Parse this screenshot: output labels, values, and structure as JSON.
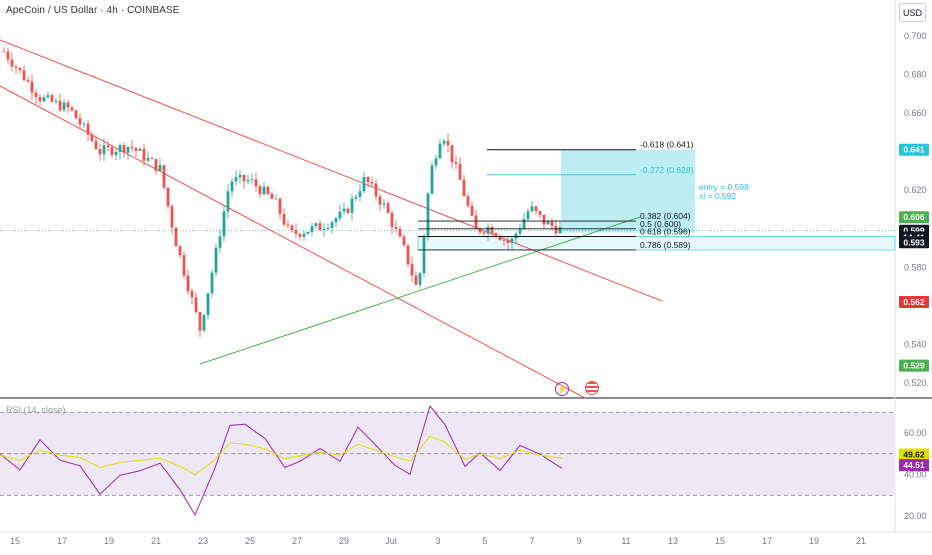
{
  "header": {
    "symbol_title": "ApeCoin / US Dollar · 4h · COINBASE",
    "currency_button": "USD"
  },
  "colors": {
    "up": "#26a69a",
    "down": "#ef5350",
    "channel_line": "#ef5350",
    "support_line": "#4caf50",
    "fib_line": "#131722",
    "fib_ext": "#26c6da",
    "target_zone": "#b2ebf2",
    "rsi_line": "#9c27b0",
    "rsi_ma": "#e0e000",
    "rsi_band": "#ede7f6"
  },
  "icons": [
    "lightning-icon",
    "us-flag-icon"
  ],
  "chart_data": [
    {
      "type": "candlestick",
      "title": "ApeCoin / US Dollar · 4h · COINBASE",
      "ylim": [
        0.515,
        0.713
      ],
      "price_ticks": [
        "0.700",
        "0.680",
        "0.660",
        "0.620",
        "0.580",
        "0.540",
        "0.520"
      ],
      "x_ticks": [
        "15",
        "17",
        "19",
        "21",
        "23",
        "25",
        "27",
        "29",
        "Jul",
        "3",
        "5",
        "7",
        "9",
        "11",
        "13",
        "15",
        "17",
        "19",
        "21"
      ],
      "price_labels": [
        {
          "text": "0.641",
          "value": 0.641,
          "color": "#26c6da"
        },
        {
          "text": "0.606",
          "value": 0.606,
          "color": "#4caf50"
        },
        {
          "text": "0.599",
          "value": 0.599,
          "color": "#131722"
        },
        {
          "text": "14:41",
          "value": 0.5955,
          "color": "#131722"
        },
        {
          "text": "0.593",
          "value": 0.593,
          "color": "#131722"
        },
        {
          "text": "0.562",
          "value": 0.562,
          "color": "#e53935"
        },
        {
          "text": "0.529",
          "value": 0.529,
          "color": "#4caf50"
        }
      ],
      "current_price": 0.599,
      "fib_levels": [
        {
          "text": "-0.618 (0.641)",
          "value": 0.641,
          "ext": false
        },
        {
          "text": "-0.272 (0.628)",
          "value": 0.628,
          "ext": true
        },
        {
          "text": "0.382 (0.604)",
          "value": 0.604,
          "ext": false
        },
        {
          "text": "0.5 (0.600)",
          "value": 0.6,
          "ext": false
        },
        {
          "text": "0.618 (0.596)",
          "value": 0.596,
          "ext": false
        },
        {
          "text": "0.786 (0.589)",
          "value": 0.589,
          "ext": false
        }
      ],
      "annotations": [
        "entry = 0.598",
        "sl = 0.592"
      ],
      "position": {
        "entry": 0.598,
        "stop_loss": 0.592,
        "target": 0.641
      }
    },
    {
      "type": "line",
      "title": "RSI (14, close)",
      "ylim": [
        15,
        75
      ],
      "ticks": [
        "60.00",
        "40.00",
        "20.00"
      ],
      "band": [
        30,
        70
      ],
      "midline": 50,
      "last_values": [
        {
          "text": "49.62",
          "value": 49.62,
          "series": "ma"
        },
        {
          "text": "44.51",
          "value": 44.51,
          "series": "rsi"
        }
      ]
    }
  ]
}
